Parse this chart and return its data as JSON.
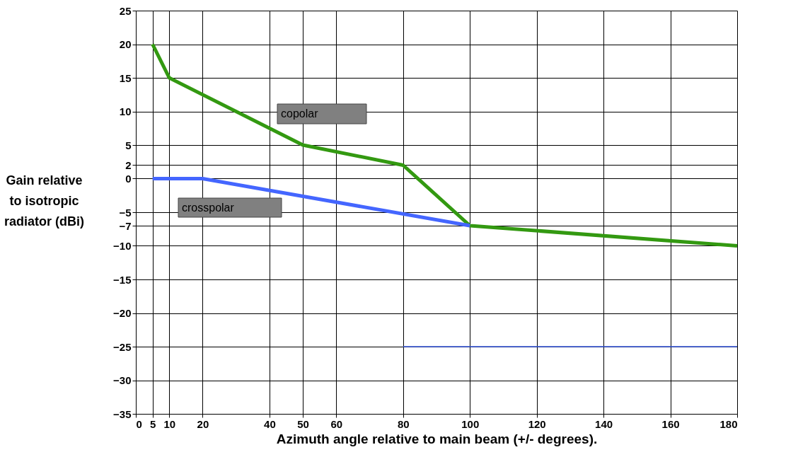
{
  "chart_data": {
    "type": "line",
    "xlabel": "Azimuth angle relative to main beam (+/- degrees).",
    "ylabel": "Gain relative to isotropic radiator (dBi)",
    "series": [
      {
        "name": "copolar",
        "color": "#339911",
        "x": [
          5,
          10,
          50,
          80,
          100,
          180
        ],
        "values": [
          20,
          15,
          5,
          2,
          -7,
          -10
        ]
      },
      {
        "name": "crosspolar",
        "color": "#4466ff",
        "x": [
          5,
          20,
          100
        ],
        "values": [
          0,
          0,
          -7
        ]
      },
      {
        "color": "#3355dd",
        "x": [
          80,
          180
        ],
        "values": [
          -25,
          -25
        ]
      }
    ],
    "xlim": [
      0,
      180
    ],
    "xticks": [
      0,
      5,
      10,
      20,
      40,
      50,
      60,
      80,
      100,
      120,
      140,
      160,
      180
    ],
    "ylim": [
      -35,
      25
    ],
    "yticks": [
      -35,
      -30,
      -25,
      -20,
      -15,
      -10,
      -7,
      -5,
      0,
      2,
      5,
      10,
      15,
      20,
      25
    ],
    "grid": true,
    "legend": false,
    "marker": "none",
    "line_style": "solid"
  }
}
